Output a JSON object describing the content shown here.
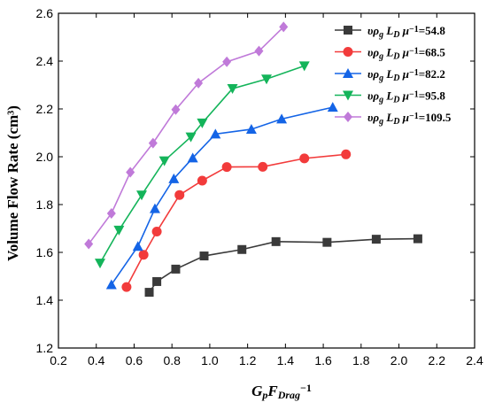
{
  "chart_data": {
    "type": "line",
    "xlim": [
      0.2,
      2.4
    ],
    "ylim": [
      1.2,
      2.6
    ],
    "x_ticks": [
      "0.2",
      "0.4",
      "0.6",
      "0.8",
      "1.0",
      "1.2",
      "1.4",
      "1.6",
      "1.8",
      "2.0",
      "2.2",
      "2.4"
    ],
    "y_ticks": [
      "1.2",
      "1.4",
      "1.6",
      "1.8",
      "2.0",
      "2.2",
      "2.4",
      "2.6"
    ],
    "ylabel": "Volume Flow Rate (cm³)",
    "xlabel": {
      "base": "G",
      "base_sub": "p",
      "mid": "F",
      "mid_sub": "Drag",
      "sup": "−1"
    },
    "legend_placement": "top-right",
    "grid": false,
    "legend_prefix": {
      "v": "υρ",
      "sub_g": "g",
      "L": "L",
      "sub_D": "D",
      "mu": "μ",
      "sup": "−1",
      "eq": "="
    },
    "series": [
      {
        "name": "54.8",
        "color": "#3a3a3a",
        "marker": "square",
        "x": [
          0.68,
          0.72,
          0.82,
          0.97,
          1.17,
          1.35,
          1.62,
          1.88,
          2.1
        ],
        "y": [
          1.433,
          1.478,
          1.53,
          1.585,
          1.612,
          1.645,
          1.642,
          1.655,
          1.657
        ]
      },
      {
        "name": "68.5",
        "color": "#f23b3b",
        "marker": "circle",
        "x": [
          0.56,
          0.65,
          0.72,
          0.84,
          0.96,
          1.09,
          1.28,
          1.5,
          1.72
        ],
        "y": [
          1.455,
          1.59,
          1.687,
          1.84,
          1.9,
          1.957,
          1.958,
          1.993,
          2.01
        ]
      },
      {
        "name": "82.2",
        "color": "#1464e6",
        "marker": "triangle-up",
        "x": [
          0.48,
          0.62,
          0.71,
          0.81,
          0.91,
          1.03,
          1.22,
          1.38,
          1.65
        ],
        "y": [
          1.465,
          1.625,
          1.783,
          1.908,
          1.995,
          2.095,
          2.115,
          2.158,
          2.207
        ]
      },
      {
        "name": "95.8",
        "color": "#14b45a",
        "marker": "triangle-down",
        "x": [
          0.42,
          0.52,
          0.64,
          0.76,
          0.9,
          0.96,
          1.12,
          1.3,
          1.5
        ],
        "y": [
          1.555,
          1.693,
          1.84,
          1.983,
          2.083,
          2.141,
          2.285,
          2.325,
          2.38
        ]
      },
      {
        "name": "109.5",
        "color": "#c07ad9",
        "marker": "diamond",
        "x": [
          0.36,
          0.48,
          0.58,
          0.7,
          0.82,
          0.94,
          1.09,
          1.26,
          1.39
        ],
        "y": [
          1.635,
          1.763,
          1.935,
          2.057,
          2.197,
          2.308,
          2.397,
          2.442,
          2.543
        ]
      }
    ]
  }
}
